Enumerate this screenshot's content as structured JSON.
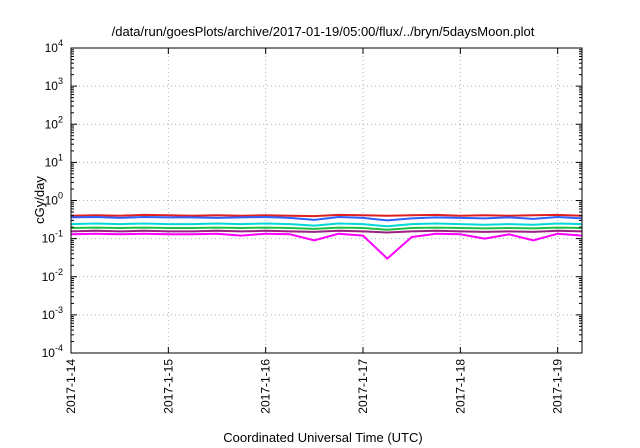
{
  "chart_data": {
    "type": "line",
    "title": "/data/run/goesPlots/archive/2017-01-19/05:00/flux/../bryn/5daysMoon.plot",
    "xlabel": "Coordinated Universal Time (UTC)",
    "ylabel": "cGy/day",
    "y_scale": "log",
    "ylim": [
      0.0001,
      10000
    ],
    "y_ticks": [
      {
        "value": 0.0001,
        "base": "10",
        "exp": "-4"
      },
      {
        "value": 0.001,
        "base": "10",
        "exp": "-3"
      },
      {
        "value": 0.01,
        "base": "10",
        "exp": "-2"
      },
      {
        "value": 0.1,
        "base": "10",
        "exp": "-1"
      },
      {
        "value": 1,
        "base": "10",
        "exp": "0"
      },
      {
        "value": 10,
        "base": "10",
        "exp": "1"
      },
      {
        "value": 100,
        "base": "10",
        "exp": "2"
      },
      {
        "value": 1000,
        "base": "10",
        "exp": "3"
      },
      {
        "value": 10000,
        "base": "10",
        "exp": "4"
      }
    ],
    "xlim": [
      "2017-01-14T00:00",
      "2017-01-19T06:00"
    ],
    "x_ticks": [
      "2017-1-14",
      "2017-1-15",
      "2017-1-16",
      "2017-1-17",
      "2017-1-18",
      "2017-1-19"
    ],
    "grid": true,
    "x": [
      "2017-01-14T00:00",
      "2017-01-14T06:00",
      "2017-01-14T12:00",
      "2017-01-14T18:00",
      "2017-01-15T00:00",
      "2017-01-15T06:00",
      "2017-01-15T12:00",
      "2017-01-15T18:00",
      "2017-01-16T00:00",
      "2017-01-16T06:00",
      "2017-01-16T12:00",
      "2017-01-16T18:00",
      "2017-01-17T00:00",
      "2017-01-17T06:00",
      "2017-01-17T12:00",
      "2017-01-17T18:00",
      "2017-01-18T00:00",
      "2017-01-18T06:00",
      "2017-01-18T12:00",
      "2017-01-18T18:00",
      "2017-01-19T00:00",
      "2017-01-19T06:00"
    ],
    "series": [
      {
        "color": "#e02020",
        "values": [
          0.4,
          0.41,
          0.4,
          0.42,
          0.41,
          0.4,
          0.41,
          0.4,
          0.41,
          0.4,
          0.39,
          0.42,
          0.41,
          0.4,
          0.41,
          0.42,
          0.4,
          0.41,
          0.4,
          0.41,
          0.42,
          0.4
        ]
      },
      {
        "color": "#3060ff",
        "values": [
          0.36,
          0.37,
          0.35,
          0.37,
          0.36,
          0.36,
          0.35,
          0.36,
          0.37,
          0.35,
          0.31,
          0.37,
          0.35,
          0.3,
          0.34,
          0.36,
          0.35,
          0.34,
          0.36,
          0.33,
          0.37,
          0.34
        ]
      },
      {
        "color": "#00d8d8",
        "values": [
          0.24,
          0.25,
          0.24,
          0.25,
          0.24,
          0.24,
          0.25,
          0.24,
          0.25,
          0.24,
          0.22,
          0.25,
          0.24,
          0.21,
          0.24,
          0.25,
          0.24,
          0.23,
          0.24,
          0.23,
          0.25,
          0.24
        ]
      },
      {
        "color": "#20c040",
        "values": [
          0.19,
          0.195,
          0.19,
          0.195,
          0.19,
          0.19,
          0.195,
          0.19,
          0.195,
          0.19,
          0.18,
          0.195,
          0.19,
          0.17,
          0.19,
          0.195,
          0.19,
          0.185,
          0.19,
          0.185,
          0.195,
          0.19
        ]
      },
      {
        "color": "#9a2080",
        "values": [
          0.155,
          0.16,
          0.155,
          0.16,
          0.155,
          0.155,
          0.16,
          0.155,
          0.16,
          0.155,
          0.15,
          0.16,
          0.155,
          0.145,
          0.155,
          0.16,
          0.155,
          0.15,
          0.155,
          0.15,
          0.16,
          0.155
        ]
      },
      {
        "color": "#ff00ff",
        "values": [
          0.13,
          0.135,
          0.13,
          0.135,
          0.13,
          0.13,
          0.135,
          0.12,
          0.135,
          0.13,
          0.09,
          0.135,
          0.12,
          0.03,
          0.11,
          0.135,
          0.13,
          0.1,
          0.13,
          0.09,
          0.135,
          0.12
        ]
      }
    ]
  }
}
